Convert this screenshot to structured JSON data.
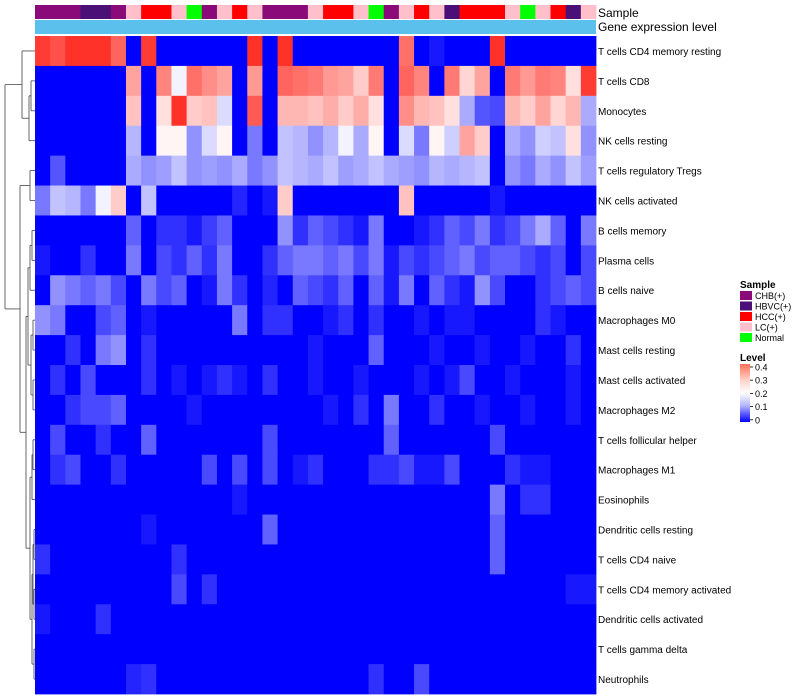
{
  "chart_data": {
    "type": "heatmap",
    "annotation_row_labels": [
      "Sample",
      "Gene expression level"
    ],
    "rows": [
      "T cells CD4 memory resting",
      "T cells CD8",
      "Monocytes",
      "NK cells resting",
      "T cells regulatory  Tregs",
      "NK cells activated",
      "B cells memory",
      "Plasma cells",
      "B cells naive",
      "Macrophages M0",
      "Mast cells resting",
      "Mast cells activated",
      "Macrophages M2",
      "T cells follicular helper",
      "Macrophages M1",
      "Eosinophils",
      "Dendritic cells resting",
      "T cells CD4 naive",
      "T cells CD4 memory activated",
      "Dendritic cells activated",
      "T cells gamma delta",
      "Neutrophils"
    ],
    "sample_groups": [
      "CHB",
      "CHB",
      "CHB",
      "HBVC",
      "HBVC",
      "CHB",
      "LC",
      "HCC",
      "HCC",
      "LC",
      "Normal",
      "CHB",
      "LC",
      "HCC",
      "LC",
      "CHB",
      "CHB",
      "CHB",
      "LC",
      "HCC",
      "HCC",
      "LC",
      "Normal",
      "CHB",
      "LC",
      "HCC",
      "LC",
      "HBVC",
      "HCC",
      "HCC",
      "HCC",
      "LC",
      "Normal",
      "LC",
      "HCC",
      "HBVC",
      "LC"
    ],
    "legend": {
      "sample_title": "Sample",
      "sample_entries": [
        {
          "label": "CHB(+)",
          "key": "CHB",
          "color": "#8B0A7A"
        },
        {
          "label": "HBVC(+)",
          "key": "HBVC",
          "color": "#4B1077"
        },
        {
          "label": "HCC(+)",
          "key": "HCC",
          "color": "#FF0000"
        },
        {
          "label": "LC(+)",
          "key": "LC",
          "color": "#FFC0CB"
        },
        {
          "label": "Normal",
          "key": "Normal",
          "color": "#00FF00"
        }
      ],
      "level_title": "Level",
      "level_ticks": [
        "0.4",
        "0.3",
        "0.2",
        "0.1",
        "0"
      ],
      "level_range": [
        0,
        0.42
      ]
    },
    "gene_expression_color": "#5BC0EB",
    "values": [
      [
        0.4,
        0.38,
        0.41,
        0.41,
        0.41,
        0.36,
        0.0,
        0.4,
        0.0,
        0.0,
        0.0,
        0.0,
        0.0,
        0.0,
        0.41,
        0.0,
        0.41,
        0.0,
        0.0,
        0.0,
        0.0,
        0.0,
        0.0,
        0.0,
        0.35,
        0.0,
        0.02,
        0.0,
        0.0,
        0.0,
        0.41,
        0.0,
        0.0,
        0.0,
        0.0,
        0.0,
        0.0
      ],
      [
        0.0,
        0.0,
        0.0,
        0.0,
        0.0,
        0.0,
        0.3,
        0.0,
        0.33,
        0.2,
        0.35,
        0.32,
        0.3,
        0.0,
        0.31,
        0.0,
        0.36,
        0.35,
        0.34,
        0.31,
        0.3,
        0.26,
        0.34,
        0.0,
        0.36,
        0.33,
        0.0,
        0.34,
        0.25,
        0.3,
        0.0,
        0.34,
        0.31,
        0.34,
        0.33,
        0.24,
        0.4
      ],
      [
        0.0,
        0.0,
        0.0,
        0.0,
        0.0,
        0.0,
        0.27,
        0.0,
        0.24,
        0.41,
        0.26,
        0.27,
        0.18,
        0.0,
        0.37,
        0.0,
        0.28,
        0.28,
        0.27,
        0.29,
        0.26,
        0.29,
        0.24,
        0.0,
        0.32,
        0.28,
        0.27,
        0.24,
        0.14,
        0.07,
        0.06,
        0.28,
        0.26,
        0.3,
        0.25,
        0.28,
        0.14
      ],
      [
        0.0,
        0.0,
        0.0,
        0.0,
        0.0,
        0.0,
        0.15,
        0.0,
        0.22,
        0.22,
        0.12,
        0.18,
        0.22,
        0.0,
        0.1,
        0.0,
        0.16,
        0.15,
        0.12,
        0.15,
        0.2,
        0.14,
        0.22,
        0.0,
        0.18,
        0.1,
        0.22,
        0.17,
        0.3,
        0.26,
        0.0,
        0.14,
        0.12,
        0.17,
        0.16,
        0.24,
        0.12
      ],
      [
        0.0,
        0.07,
        0.0,
        0.0,
        0.0,
        0.0,
        0.14,
        0.12,
        0.13,
        0.16,
        0.12,
        0.13,
        0.12,
        0.14,
        0.1,
        0.12,
        0.16,
        0.15,
        0.14,
        0.16,
        0.13,
        0.14,
        0.16,
        0.14,
        0.13,
        0.12,
        0.15,
        0.14,
        0.15,
        0.16,
        0.0,
        0.12,
        0.1,
        0.14,
        0.12,
        0.16,
        0.13
      ],
      [
        0.1,
        0.16,
        0.15,
        0.1,
        0.2,
        0.26,
        0.0,
        0.16,
        0.0,
        0.0,
        0.0,
        0.0,
        0.0,
        0.03,
        0.0,
        0.02,
        0.26,
        0.0,
        0.0,
        0.0,
        0.0,
        0.0,
        0.0,
        0.0,
        0.27,
        0.0,
        0.0,
        0.0,
        0.0,
        0.0,
        0.02,
        0.0,
        0.0,
        0.0,
        0.0,
        0.0,
        0.0
      ],
      [
        0.0,
        0.0,
        0.0,
        0.0,
        0.0,
        0.0,
        0.08,
        0.0,
        0.04,
        0.04,
        0.02,
        0.05,
        0.08,
        0.0,
        0.0,
        0.0,
        0.12,
        0.04,
        0.08,
        0.06,
        0.04,
        0.02,
        0.1,
        0.0,
        0.0,
        0.02,
        0.04,
        0.08,
        0.06,
        0.1,
        0.04,
        0.06,
        0.1,
        0.14,
        0.08,
        0.0,
        0.1
      ],
      [
        0.02,
        0.0,
        0.0,
        0.04,
        0.0,
        0.0,
        0.1,
        0.0,
        0.06,
        0.04,
        0.08,
        0.04,
        0.1,
        0.0,
        0.0,
        0.04,
        0.08,
        0.1,
        0.1,
        0.08,
        0.1,
        0.06,
        0.1,
        0.02,
        0.06,
        0.04,
        0.06,
        0.08,
        0.1,
        0.06,
        0.08,
        0.08,
        0.06,
        0.04,
        0.06,
        0.0,
        0.06
      ],
      [
        0.0,
        0.12,
        0.1,
        0.08,
        0.1,
        0.06,
        0.0,
        0.1,
        0.06,
        0.08,
        0.0,
        0.02,
        0.1,
        0.04,
        0.0,
        0.03,
        0.0,
        0.08,
        0.06,
        0.04,
        0.08,
        0.0,
        0.08,
        0.02,
        0.1,
        0.0,
        0.08,
        0.04,
        0.02,
        0.12,
        0.06,
        0.0,
        0.0,
        0.04,
        0.06,
        0.08,
        0.06
      ],
      [
        0.12,
        0.1,
        0.0,
        0.0,
        0.06,
        0.08,
        0.0,
        0.02,
        0.0,
        0.0,
        0.0,
        0.0,
        0.0,
        0.1,
        0.0,
        0.04,
        0.04,
        0.0,
        0.0,
        0.02,
        0.04,
        0.0,
        0.04,
        0.0,
        0.0,
        0.02,
        0.0,
        0.02,
        0.02,
        0.0,
        0.0,
        0.0,
        0.0,
        0.04,
        0.02,
        0.0,
        0.0
      ],
      [
        0.0,
        0.0,
        0.04,
        0.0,
        0.1,
        0.12,
        0.0,
        0.04,
        0.0,
        0.0,
        0.0,
        0.0,
        0.0,
        0.0,
        0.0,
        0.0,
        0.0,
        0.0,
        0.02,
        0.0,
        0.0,
        0.0,
        0.08,
        0.0,
        0.0,
        0.0,
        0.02,
        0.0,
        0.0,
        0.02,
        0.0,
        0.0,
        0.02,
        0.0,
        0.0,
        0.04,
        0.0
      ],
      [
        0.0,
        0.04,
        0.0,
        0.06,
        0.0,
        0.0,
        0.0,
        0.04,
        0.0,
        0.02,
        0.0,
        0.02,
        0.04,
        0.02,
        0.0,
        0.04,
        0.0,
        0.0,
        0.02,
        0.0,
        0.0,
        0.02,
        0.0,
        0.0,
        0.0,
        0.02,
        0.0,
        0.02,
        0.06,
        0.0,
        0.0,
        0.02,
        0.0,
        0.0,
        0.0,
        0.02,
        0.0
      ],
      [
        0.0,
        0.0,
        0.04,
        0.06,
        0.06,
        0.08,
        0.0,
        0.0,
        0.0,
        0.0,
        0.02,
        0.0,
        0.0,
        0.0,
        0.0,
        0.0,
        0.0,
        0.0,
        0.0,
        0.02,
        0.0,
        0.04,
        0.0,
        0.1,
        0.0,
        0.0,
        0.04,
        0.0,
        0.0,
        0.02,
        0.0,
        0.0,
        0.02,
        0.0,
        0.0,
        0.02,
        0.0
      ],
      [
        0.0,
        0.06,
        0.0,
        0.0,
        0.04,
        0.0,
        0.0,
        0.08,
        0.0,
        0.0,
        0.0,
        0.0,
        0.0,
        0.0,
        0.0,
        0.06,
        0.0,
        0.0,
        0.0,
        0.0,
        0.0,
        0.0,
        0.0,
        0.08,
        0.0,
        0.0,
        0.0,
        0.0,
        0.0,
        0.0,
        0.06,
        0.0,
        0.0,
        0.0,
        0.0,
        0.0,
        0.0
      ],
      [
        0.0,
        0.04,
        0.06,
        0.0,
        0.0,
        0.04,
        0.0,
        0.0,
        0.0,
        0.0,
        0.0,
        0.06,
        0.0,
        0.06,
        0.0,
        0.06,
        0.0,
        0.02,
        0.04,
        0.0,
        0.0,
        0.0,
        0.04,
        0.04,
        0.06,
        0.02,
        0.02,
        0.06,
        0.0,
        0.0,
        0.0,
        0.04,
        0.02,
        0.02,
        0.0,
        0.0,
        0.0
      ],
      [
        0.0,
        0.0,
        0.0,
        0.0,
        0.0,
        0.0,
        0.0,
        0.0,
        0.0,
        0.0,
        0.0,
        0.0,
        0.0,
        0.02,
        0.0,
        0.0,
        0.0,
        0.0,
        0.0,
        0.0,
        0.0,
        0.0,
        0.0,
        0.0,
        0.0,
        0.0,
        0.0,
        0.0,
        0.0,
        0.0,
        0.1,
        0.0,
        0.04,
        0.04,
        0.0,
        0.0,
        0.0
      ],
      [
        0.0,
        0.0,
        0.0,
        0.0,
        0.0,
        0.0,
        0.0,
        0.02,
        0.0,
        0.0,
        0.0,
        0.0,
        0.0,
        0.0,
        0.0,
        0.08,
        0.0,
        0.0,
        0.0,
        0.0,
        0.0,
        0.0,
        0.0,
        0.0,
        0.0,
        0.0,
        0.0,
        0.0,
        0.0,
        0.0,
        0.08,
        0.0,
        0.0,
        0.0,
        0.0,
        0.0,
        0.0
      ],
      [
        0.04,
        0.0,
        0.0,
        0.0,
        0.0,
        0.0,
        0.0,
        0.0,
        0.0,
        0.04,
        0.0,
        0.0,
        0.0,
        0.0,
        0.0,
        0.0,
        0.0,
        0.0,
        0.0,
        0.0,
        0.0,
        0.0,
        0.0,
        0.0,
        0.0,
        0.0,
        0.0,
        0.0,
        0.0,
        0.0,
        0.08,
        0.0,
        0.0,
        0.0,
        0.0,
        0.0,
        0.0
      ],
      [
        0.0,
        0.0,
        0.0,
        0.0,
        0.0,
        0.0,
        0.0,
        0.0,
        0.0,
        0.06,
        0.0,
        0.04,
        0.0,
        0.0,
        0.0,
        0.0,
        0.0,
        0.0,
        0.0,
        0.0,
        0.0,
        0.0,
        0.0,
        0.0,
        0.0,
        0.0,
        0.0,
        0.0,
        0.0,
        0.0,
        0.0,
        0.0,
        0.0,
        0.0,
        0.0,
        0.02,
        0.02
      ],
      [
        0.02,
        0.0,
        0.0,
        0.0,
        0.04,
        0.0,
        0.0,
        0.0,
        0.0,
        0.0,
        0.0,
        0.0,
        0.0,
        0.0,
        0.0,
        0.0,
        0.0,
        0.0,
        0.0,
        0.0,
        0.0,
        0.0,
        0.0,
        0.0,
        0.0,
        0.0,
        0.0,
        0.0,
        0.0,
        0.0,
        0.0,
        0.0,
        0.0,
        0.0,
        0.0,
        0.0,
        0.0
      ],
      [
        0.0,
        0.0,
        0.0,
        0.0,
        0.0,
        0.0,
        0.0,
        0.0,
        0.0,
        0.0,
        0.0,
        0.0,
        0.0,
        0.0,
        0.0,
        0.0,
        0.0,
        0.0,
        0.0,
        0.0,
        0.0,
        0.0,
        0.0,
        0.0,
        0.0,
        0.0,
        0.0,
        0.0,
        0.0,
        0.0,
        0.0,
        0.0,
        0.0,
        0.0,
        0.0,
        0.0,
        0.0
      ],
      [
        0.0,
        0.0,
        0.0,
        0.0,
        0.0,
        0.0,
        0.03,
        0.04,
        0.0,
        0.0,
        0.0,
        0.0,
        0.0,
        0.0,
        0.0,
        0.0,
        0.0,
        0.0,
        0.0,
        0.0,
        0.0,
        0.0,
        0.04,
        0.0,
        0.0,
        0.06,
        0.0,
        0.0,
        0.0,
        0.0,
        0.0,
        0.0,
        0.0,
        0.0,
        0.0,
        0.0,
        0.0
      ]
    ]
  }
}
